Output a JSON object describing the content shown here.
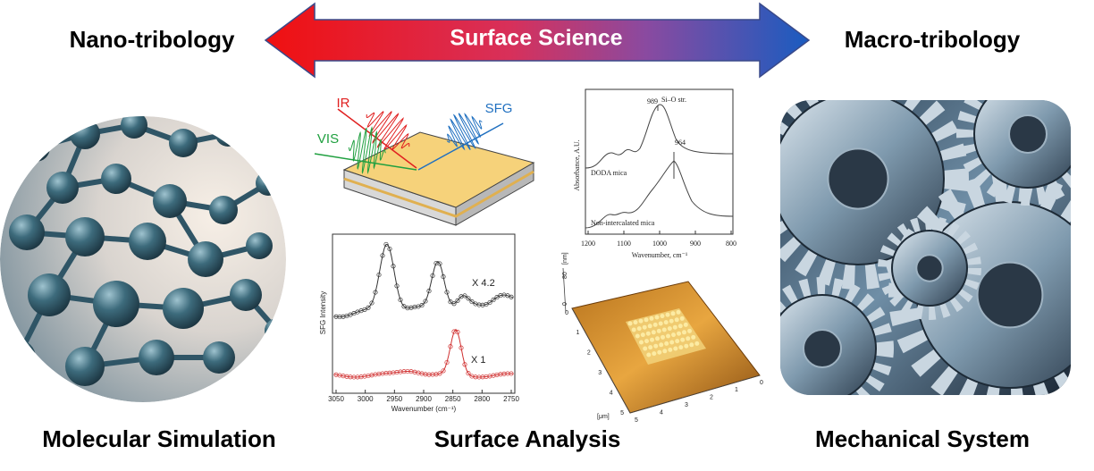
{
  "header": {
    "left": "Nano-tribology",
    "center": "Surface Science",
    "right": "Macro-tribology"
  },
  "sections": [
    {
      "label": "Molecular Simulation"
    },
    {
      "label": "Surface Analysis"
    },
    {
      "label": "Mechanical System"
    }
  ],
  "sfg_schematic": {
    "beams": [
      "IR",
      "VIS",
      "SFG"
    ]
  },
  "sfg_spectrum": {
    "ylabel": "SFG Intensity",
    "xlabel": "Wavenumber (cm⁻¹)",
    "annotations": [
      "X 4.2",
      "X 1"
    ],
    "xticks": [
      "3050",
      "3000",
      "2950",
      "2900",
      "2850",
      "2800",
      "2750"
    ]
  },
  "ir_spectrum": {
    "ylabel": "Absorbance, A.U.",
    "xlabel": "Wavenumber, cm⁻¹",
    "annotations": [
      "989",
      "Si–O str.",
      "964",
      "DODA mica",
      "Non-intercalated mica"
    ],
    "xticks": [
      "1200",
      "1100",
      "1000",
      "900",
      "800"
    ]
  },
  "afm": {
    "z_label": "80",
    "z_unit": "[nm]",
    "z_zero": "0",
    "x_unit": "[μm]",
    "x_ticks": [
      "5",
      "4",
      "3",
      "2",
      "1",
      "0"
    ],
    "y_ticks": [
      "0",
      "1",
      "2",
      "3",
      "4",
      "5"
    ]
  }
}
